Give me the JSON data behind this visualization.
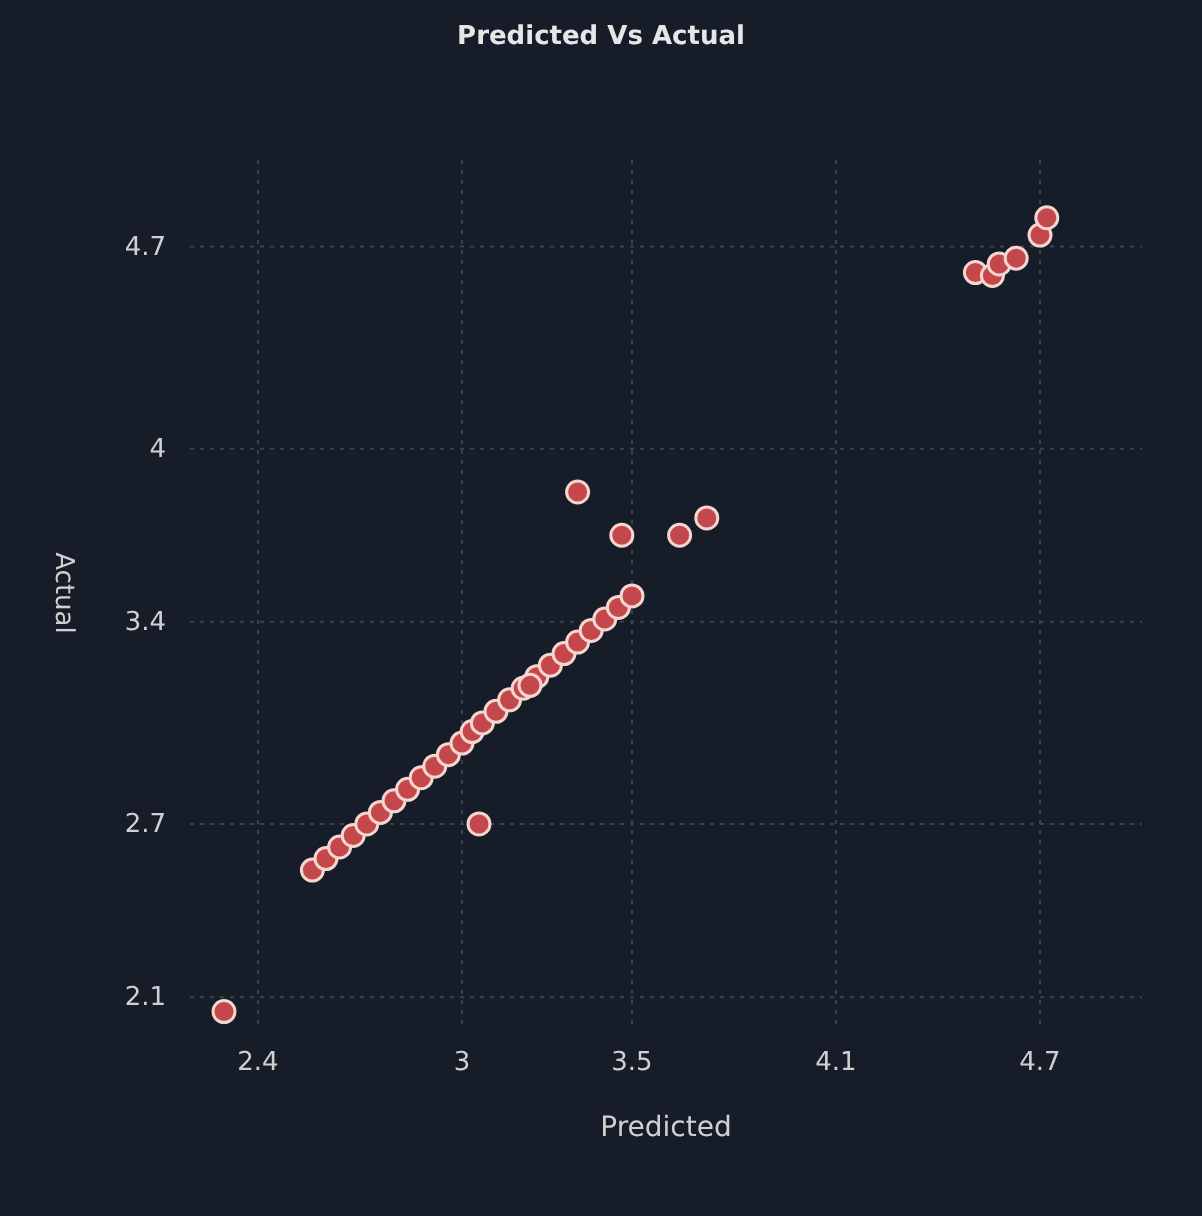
{
  "chart_data": {
    "type": "scatter",
    "title": "Predicted Vs Actual",
    "xlabel": "Predicted",
    "ylabel": "Actual",
    "xlim": [
      2.2,
      5.0
    ],
    "ylim": [
      2.0,
      5.0
    ],
    "xticks": [
      2.4,
      3,
      3.5,
      4.1,
      4.7
    ],
    "yticks": [
      2.1,
      2.7,
      3.4,
      4,
      4.7
    ],
    "grid": true,
    "marker": "circle",
    "series": [
      {
        "color": "#c4484b",
        "x": [
          2.3,
          2.56,
          2.6,
          2.64,
          2.68,
          2.72,
          2.76,
          2.8,
          2.84,
          2.88,
          2.92,
          2.96,
          3.0,
          3.03,
          3.06,
          3.1,
          3.14,
          3.18,
          3.22,
          3.26,
          3.3,
          3.34,
          3.38,
          3.42,
          3.46,
          3.5,
          3.2,
          3.05,
          3.34,
          3.47,
          3.64,
          3.72,
          4.51,
          4.56,
          4.58,
          4.63,
          4.7,
          4.72
        ],
        "values": [
          2.05,
          2.54,
          2.58,
          2.62,
          2.66,
          2.7,
          2.74,
          2.78,
          2.82,
          2.86,
          2.9,
          2.94,
          2.98,
          3.02,
          3.05,
          3.09,
          3.13,
          3.17,
          3.21,
          3.25,
          3.29,
          3.33,
          3.37,
          3.41,
          3.45,
          3.49,
          3.18,
          2.7,
          3.85,
          3.7,
          3.7,
          3.76,
          4.61,
          4.6,
          4.64,
          4.66,
          4.74,
          4.8
        ]
      }
    ]
  }
}
